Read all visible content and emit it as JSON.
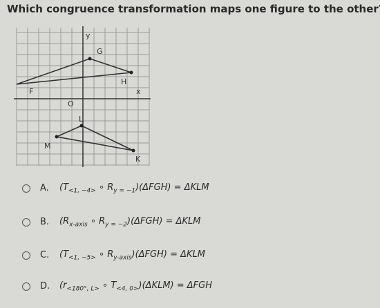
{
  "question": "Which congruence transformation maps one figure to the other?",
  "graph": {
    "axis_y": "y",
    "axis_x": "x",
    "origin": "O",
    "points": {
      "F": "F",
      "G": "G",
      "H": "H",
      "K": "K",
      "L": "L",
      "M": "M"
    }
  },
  "options": [
    {
      "letter": "A.",
      "expr": [
        {
          "text": "(T",
          "sub": "<1, −4>"
        },
        {
          "text": " ∘ R",
          "sub": "y = −1"
        },
        {
          "text": ")(ΔFGH) = ΔKLM"
        }
      ]
    },
    {
      "letter": "B.",
      "expr": [
        {
          "text": "(R",
          "sub": "x-axis"
        },
        {
          "text": " ∘ R",
          "sub": "y = −2"
        },
        {
          "text": ")(ΔFGH) = ΔKLM"
        }
      ]
    },
    {
      "letter": "C.",
      "expr": [
        {
          "text": "(T",
          "sub": "<1, −5>"
        },
        {
          "text": " ∘ R",
          "sub": "y-axis"
        },
        {
          "text": ")(ΔFGH) = ΔKLM"
        }
      ]
    },
    {
      "letter": "D.",
      "expr": [
        {
          "text": "(r",
          "sub": "<180°, L>"
        },
        {
          "text": " ∘ T",
          "sub": "<4, 0>"
        },
        {
          "text": ")(ΔKLM) = ΔFGH"
        }
      ]
    }
  ]
}
